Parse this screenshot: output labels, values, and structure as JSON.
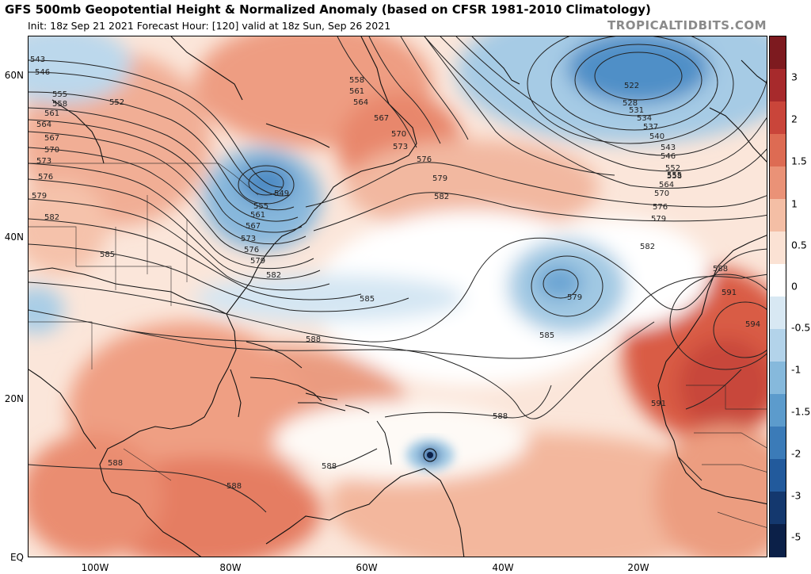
{
  "header": {
    "title": "GFS 500mb Geopotential Height & Normalized Anomaly (based on CFSR 1981-2010 Climatology)",
    "subtitle": "Init: 18z Sep 21 2021   Forecast Hour: [120]   valid at 18z Sun, Sep 26 2021",
    "brand": "TROPICALTIDBITS.COM"
  },
  "axes": {
    "lat_labels": [
      "60N",
      "40N",
      "20N",
      "EQ"
    ],
    "lon_labels": [
      "100W",
      "80W",
      "60W",
      "40W",
      "20W"
    ]
  },
  "colorbar": {
    "labels": [
      "3",
      "2",
      "1.5",
      "1",
      "0.5",
      "0",
      "-0.5",
      "-1",
      "-1.5",
      "-2",
      "-3",
      "-5"
    ],
    "colors": [
      "#7d1a1f",
      "#a72a2c",
      "#c9453a",
      "#dd6b53",
      "#ea9277",
      "#f4bea5",
      "#fbe2d4",
      "#ffffff",
      "#d8e8f3",
      "#b3d3ea",
      "#86b9dc",
      "#5c9bcc",
      "#3b7bb8",
      "#225a9c",
      "#14386e",
      "#0b2048"
    ]
  },
  "contour_labels": {
    "west": [
      "543",
      "546",
      "555",
      "558",
      "552",
      "561",
      "564",
      "567",
      "570",
      "573",
      "576",
      "579",
      "582",
      "585"
    ],
    "trough": [
      "549",
      "555",
      "561",
      "567",
      "573",
      "576",
      "579",
      "582"
    ],
    "ne_canada": [
      "558",
      "561",
      "564",
      "567",
      "570",
      "573",
      "576",
      "579",
      "582"
    ],
    "east_low": [
      "522",
      "528",
      "531",
      "534",
      "537",
      "540",
      "543",
      "546",
      "552",
      "555",
      "558",
      "564",
      "570",
      "576",
      "579"
    ],
    "atlantic": [
      "585",
      "588",
      "579",
      "585",
      "582",
      "588",
      "591",
      "594",
      "591",
      "588",
      "588",
      "588",
      "588"
    ]
  }
}
